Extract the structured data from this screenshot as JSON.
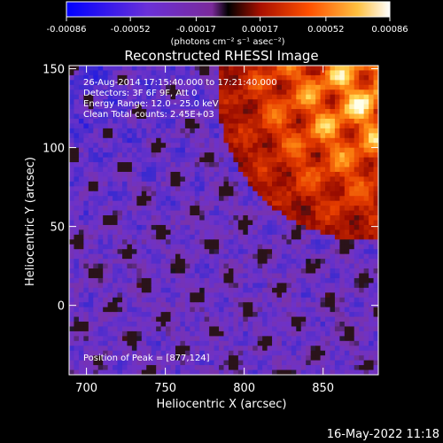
{
  "colorbar": {
    "ticks": [
      "-0.00086",
      "-0.00052",
      "-0.00017",
      "0.00017",
      "0.00052",
      "0.00086"
    ],
    "tick_values": [
      -0.00086,
      -0.00052,
      -0.00017,
      0.00017,
      0.00052,
      0.00086
    ],
    "unit_label": "(photons cm⁻² s⁻¹ asec⁻²)",
    "range": [
      -0.00086,
      0.00086
    ]
  },
  "annotations": {
    "time": "26-Aug-2014 17:15:40.000 to 17:21:40.000",
    "detectors": "Detectors: 3F 6F 9F, Att 0",
    "energy": "Energy Range: 12.0 - 25.0 keV",
    "clean": "Clean     Total counts: 2.45E+03",
    "peak": "Position of Peak = [877,124]"
  },
  "footer": {
    "timestamp": "16-May-2022 11:18"
  },
  "chart_data": {
    "type": "heatmap",
    "title": "Reconstructed RHESSI Image",
    "xlabel": "Heliocentric X (arcsec)",
    "ylabel": "Heliocentric Y (arcsec)",
    "xlim": [
      689,
      885
    ],
    "ylim": [
      -44,
      152
    ],
    "x_ticks": [
      700,
      750,
      800,
      850
    ],
    "y_ticks": [
      0,
      50,
      100,
      150
    ],
    "x_tick_labels": [
      "700",
      "750",
      "800",
      "850"
    ],
    "y_tick_labels": [
      "0",
      "50",
      "100",
      "150"
    ],
    "peak": [
      877,
      124
    ],
    "colormap": [
      "#0000ff",
      "#3a2ad0",
      "#7a38c8",
      "#9a45b4",
      "#222222",
      "#d02000",
      "#ff8000",
      "#ffff80",
      "#ffffff"
    ],
    "value_range": [
      -0.00086,
      0.00086
    ]
  }
}
